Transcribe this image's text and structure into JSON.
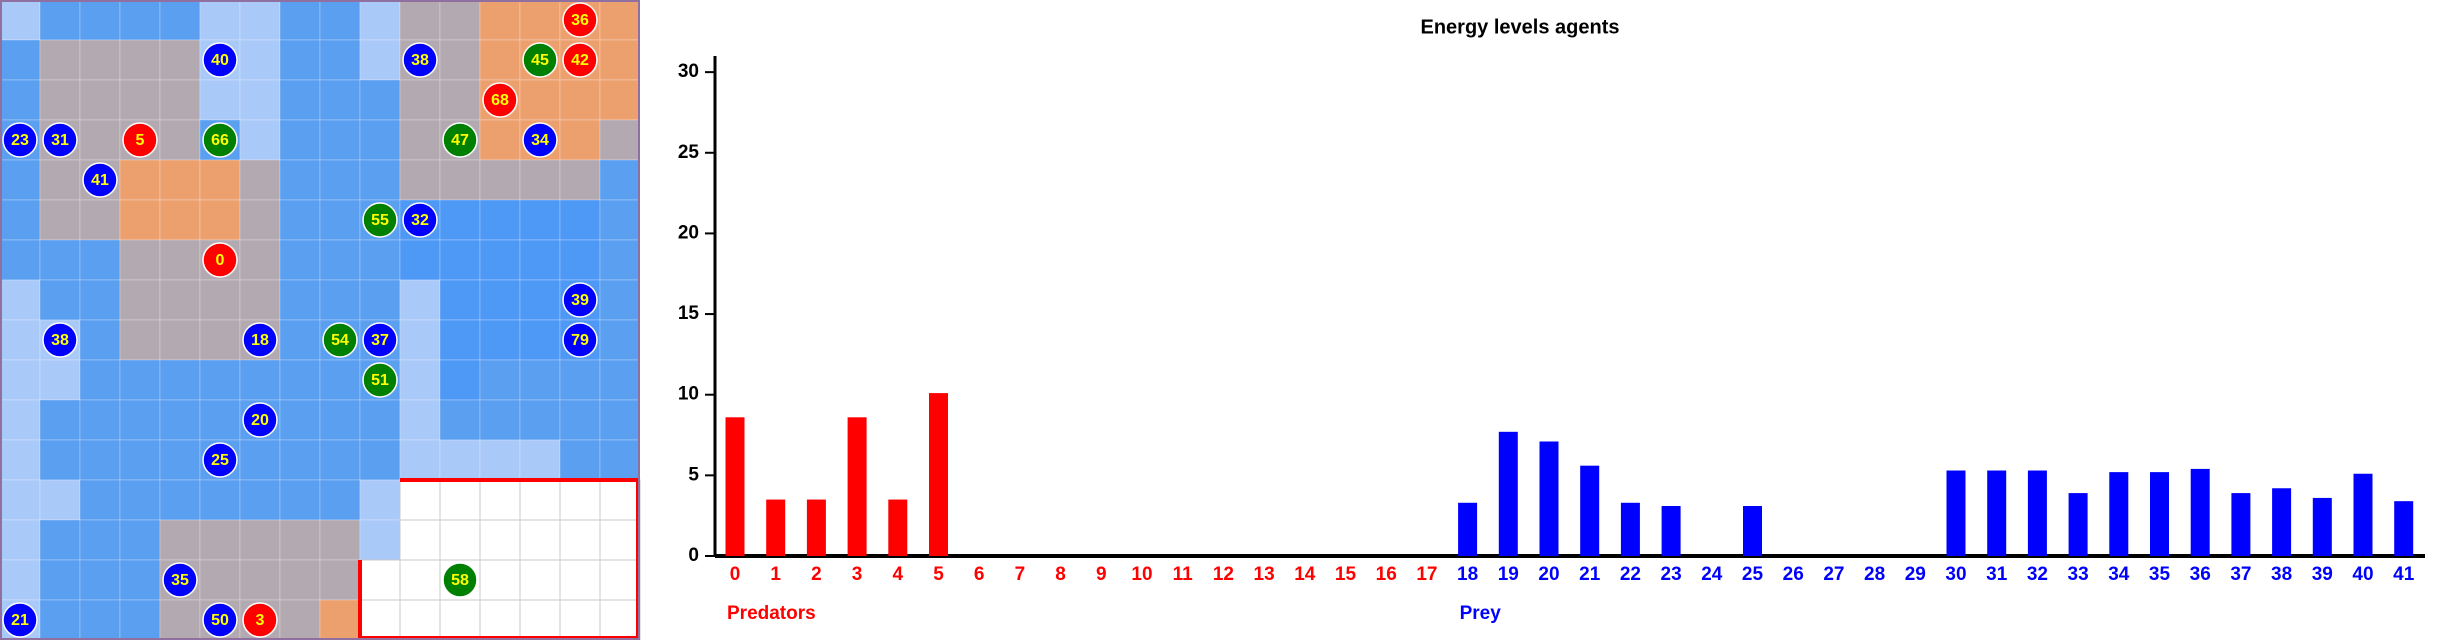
{
  "grid": {
    "agents": [
      {
        "label": "36",
        "color": "#ff0000"
      },
      {
        "label": "40",
        "color": "#0000ff"
      },
      {
        "label": "38",
        "color": "#0000ff"
      },
      {
        "label": "45",
        "color": "#008000"
      },
      {
        "label": "42",
        "color": "#ff0000"
      },
      {
        "label": "68",
        "color": "#ff0000"
      },
      {
        "label": "23",
        "color": "#0000ff"
      },
      {
        "label": "31",
        "color": "#0000ff"
      },
      {
        "label": "5",
        "color": "#ff0000"
      },
      {
        "label": "66",
        "color": "#008000"
      },
      {
        "label": "47",
        "color": "#008000"
      },
      {
        "label": "34",
        "color": "#0000ff"
      },
      {
        "label": "41",
        "color": "#0000ff"
      },
      {
        "label": "55",
        "color": "#008000"
      },
      {
        "label": "32",
        "color": "#0000ff"
      },
      {
        "label": "0",
        "color": "#ff0000"
      },
      {
        "label": "39",
        "color": "#0000ff"
      },
      {
        "label": "38",
        "color": "#0000ff"
      },
      {
        "label": "18",
        "color": "#0000ff"
      },
      {
        "label": "54",
        "color": "#008000"
      },
      {
        "label": "37",
        "color": "#0000ff"
      },
      {
        "label": "79",
        "color": "#0000ff"
      },
      {
        "label": "51",
        "color": "#008000"
      },
      {
        "label": "20",
        "color": "#0000ff"
      },
      {
        "label": "25",
        "color": "#0000ff"
      },
      {
        "label": "35",
        "color": "#0000ff"
      },
      {
        "label": "58",
        "color": "#008000"
      },
      {
        "label": "21",
        "color": "#0000ff"
      },
      {
        "label": "50",
        "color": "#0000ff"
      },
      {
        "label": "3",
        "color": "#ff0000"
      }
    ]
  },
  "chart_data": {
    "type": "bar",
    "title": "Energy levels agents",
    "categories": [
      "0",
      "1",
      "2",
      "3",
      "4",
      "5",
      "6",
      "7",
      "8",
      "9",
      "10",
      "11",
      "12",
      "13",
      "14",
      "15",
      "16",
      "17",
      "18",
      "19",
      "20",
      "21",
      "22",
      "23",
      "24",
      "25",
      "26",
      "27",
      "28",
      "29",
      "30",
      "31",
      "32",
      "33",
      "34",
      "35",
      "36",
      "37",
      "38",
      "39",
      "40",
      "41"
    ],
    "series": [
      {
        "name": "Predators",
        "color": "#ff0000",
        "values": [
          8.6,
          3.5,
          3.5,
          8.6,
          3.5,
          10.1,
          0,
          0,
          0,
          0,
          0,
          0,
          0,
          0,
          0,
          0,
          0,
          0,
          null,
          null,
          null,
          null,
          null,
          null,
          null,
          null,
          null,
          null,
          null,
          null,
          null,
          null,
          null,
          null,
          null,
          null,
          null,
          null,
          null,
          null,
          null,
          null
        ]
      },
      {
        "name": "Prey",
        "color": "#0000ff",
        "values": [
          null,
          null,
          null,
          null,
          null,
          null,
          null,
          null,
          null,
          null,
          null,
          null,
          null,
          null,
          null,
          null,
          null,
          null,
          3.3,
          7.7,
          7.1,
          5.6,
          3.3,
          3.1,
          0,
          3.1,
          0,
          0,
          0,
          0,
          5.3,
          5.3,
          5.3,
          3.9,
          5.2,
          5.2,
          5.4,
          3.9,
          4.2,
          3.6,
          5.1,
          3.4
        ]
      }
    ],
    "ylim": [
      0,
      31
    ],
    "yticks": [
      0,
      5,
      10,
      15,
      20,
      25,
      30
    ]
  }
}
